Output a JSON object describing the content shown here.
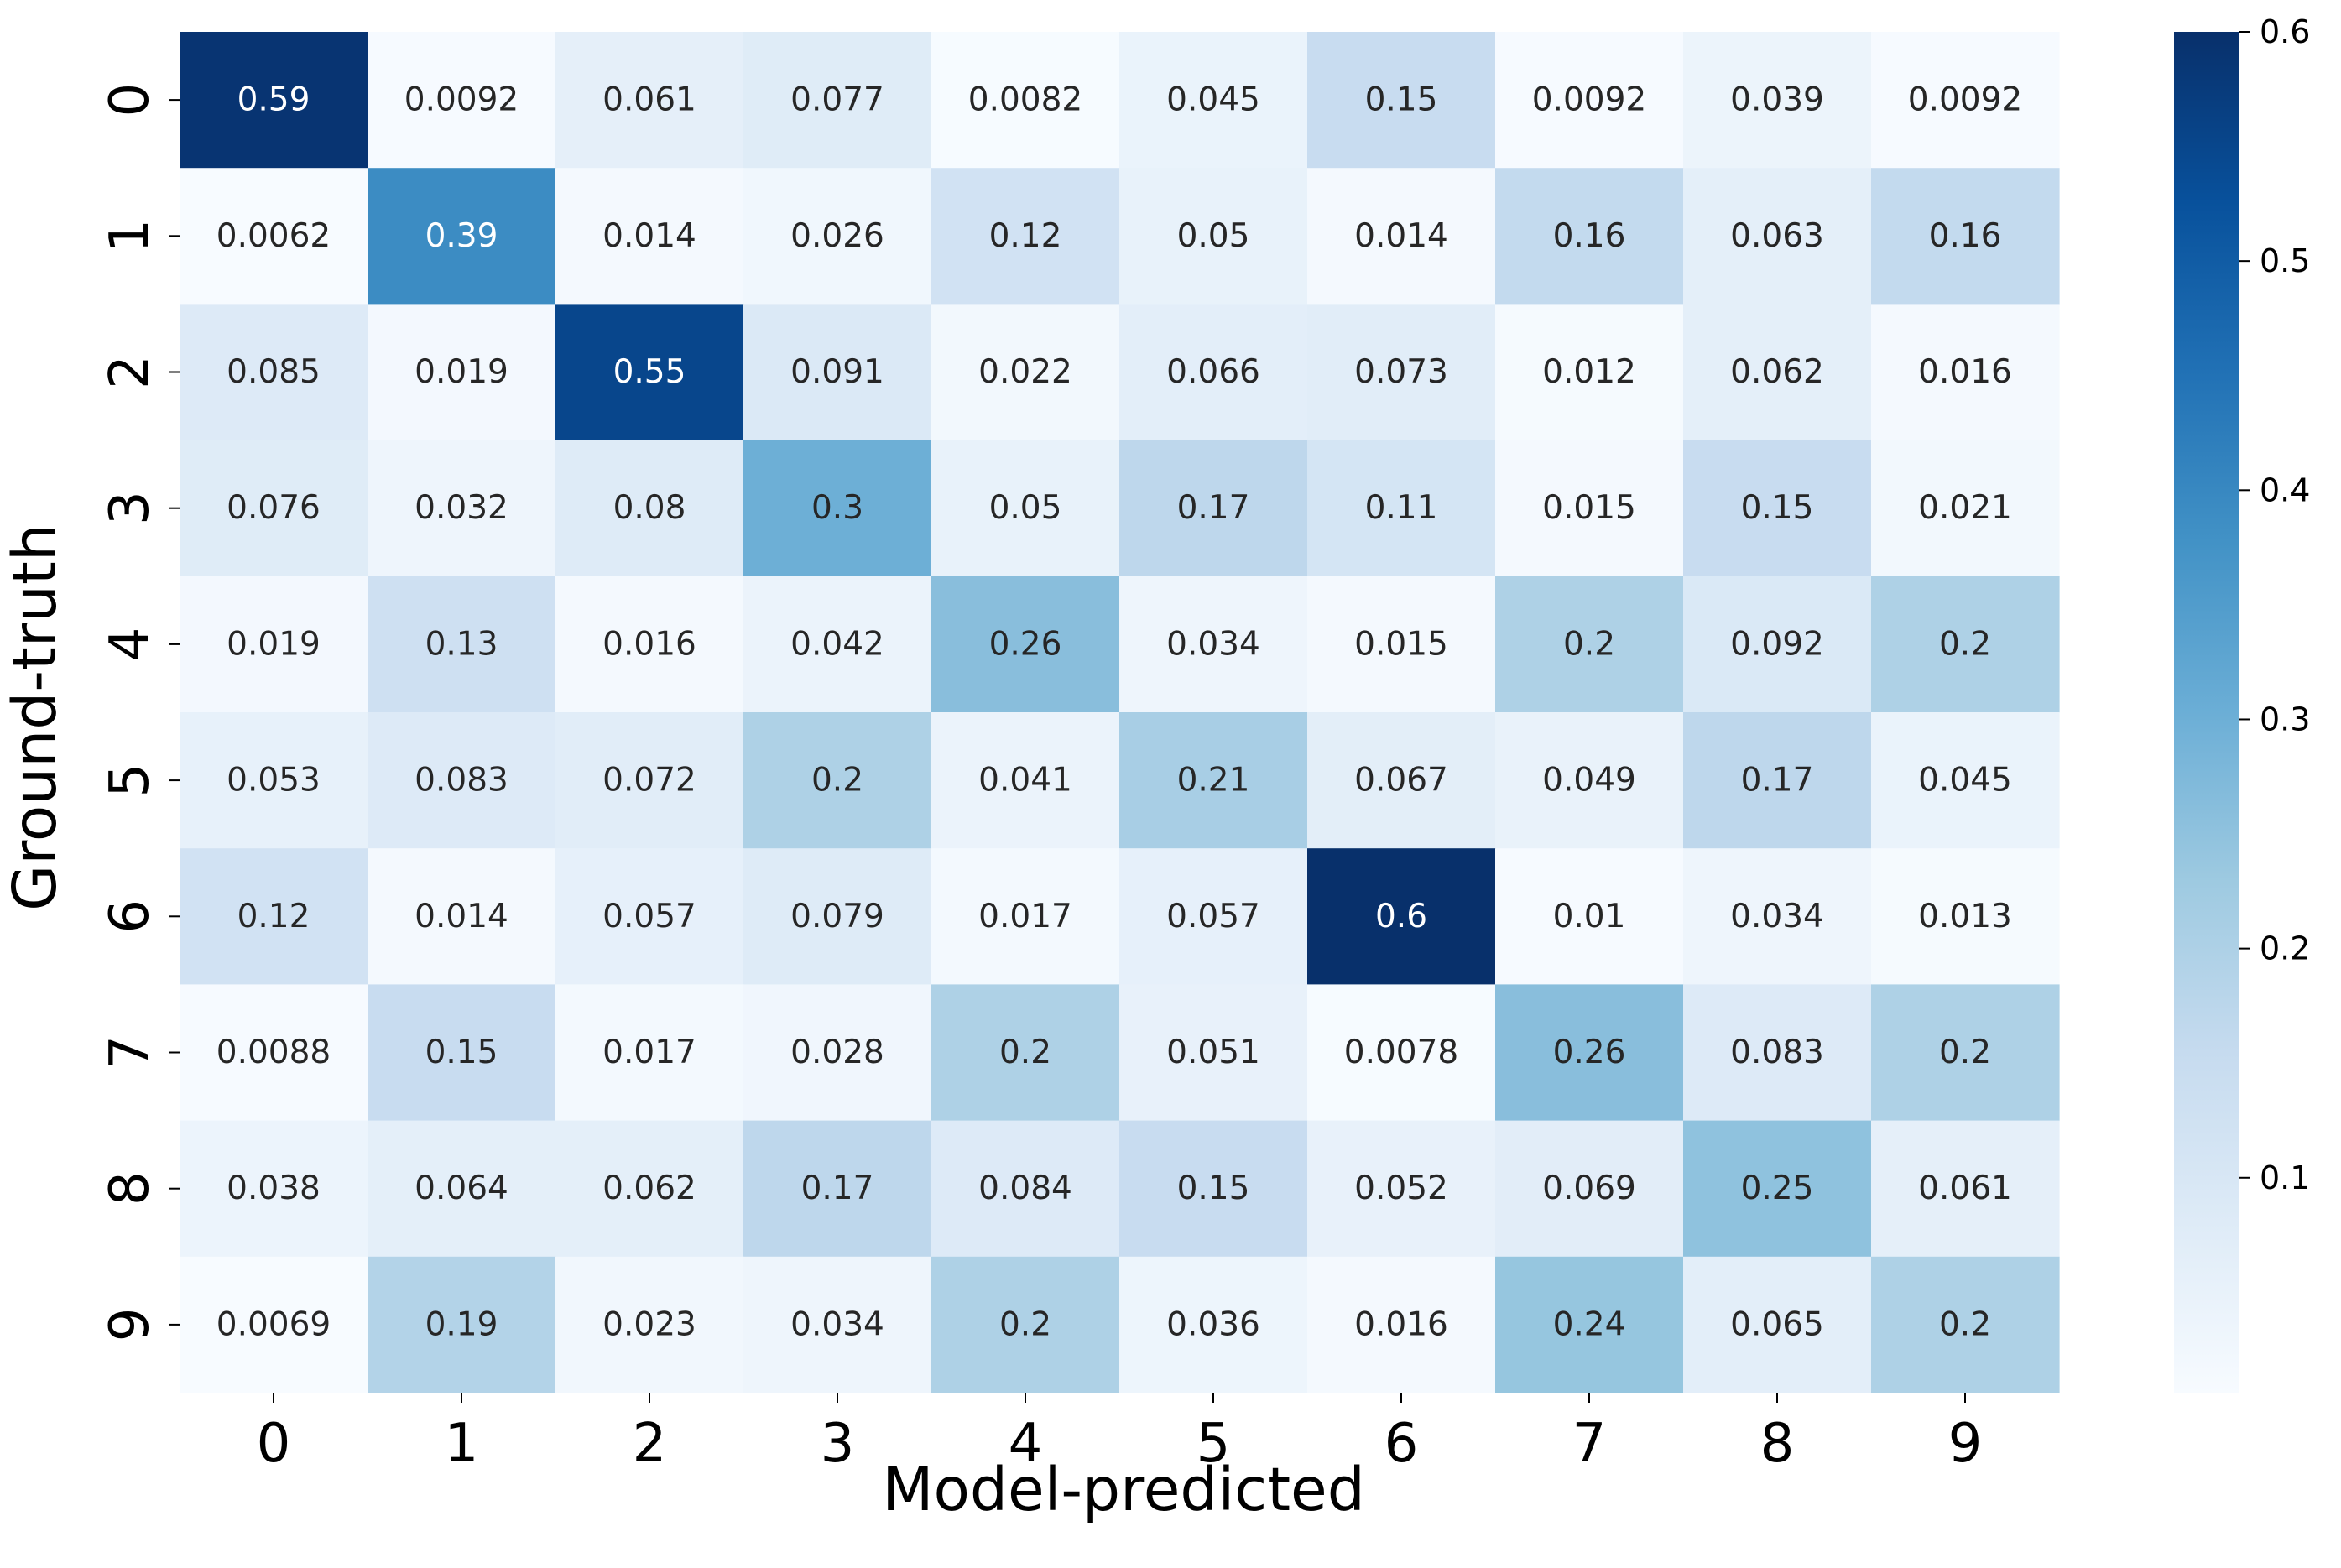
{
  "chart_data": {
    "type": "heatmap",
    "title": "",
    "xlabel": "Model-predicted",
    "ylabel": "Ground-truth",
    "x_categories": [
      "0",
      "1",
      "2",
      "3",
      "4",
      "5",
      "6",
      "7",
      "8",
      "9"
    ],
    "y_categories": [
      "0",
      "1",
      "2",
      "3",
      "4",
      "5",
      "6",
      "7",
      "8",
      "9"
    ],
    "values": [
      [
        0.59,
        0.0092,
        0.061,
        0.077,
        0.0082,
        0.045,
        0.15,
        0.0092,
        0.039,
        0.0092
      ],
      [
        0.0062,
        0.39,
        0.014,
        0.026,
        0.12,
        0.05,
        0.014,
        0.16,
        0.063,
        0.16
      ],
      [
        0.085,
        0.019,
        0.55,
        0.091,
        0.022,
        0.066,
        0.073,
        0.012,
        0.062,
        0.016
      ],
      [
        0.076,
        0.032,
        0.08,
        0.3,
        0.05,
        0.17,
        0.11,
        0.015,
        0.15,
        0.021
      ],
      [
        0.019,
        0.13,
        0.016,
        0.042,
        0.26,
        0.034,
        0.015,
        0.2,
        0.092,
        0.2
      ],
      [
        0.053,
        0.083,
        0.072,
        0.2,
        0.041,
        0.21,
        0.067,
        0.049,
        0.17,
        0.045
      ],
      [
        0.12,
        0.014,
        0.057,
        0.079,
        0.017,
        0.057,
        0.6,
        0.01,
        0.034,
        0.013
      ],
      [
        0.0088,
        0.15,
        0.017,
        0.028,
        0.2,
        0.051,
        0.0078,
        0.26,
        0.083,
        0.2
      ],
      [
        0.038,
        0.064,
        0.062,
        0.17,
        0.084,
        0.15,
        0.052,
        0.069,
        0.25,
        0.061
      ],
      [
        0.0069,
        0.19,
        0.023,
        0.034,
        0.2,
        0.036,
        0.016,
        0.24,
        0.065,
        0.2
      ]
    ],
    "colormap": "Blues",
    "colorbar": {
      "vmin": 0.0062,
      "vmax": 0.6,
      "ticks": [
        0.1,
        0.2,
        0.3,
        0.4,
        0.5,
        0.6
      ],
      "tick_labels": [
        "0.1",
        "0.2",
        "0.3",
        "0.4",
        "0.5",
        "0.6"
      ]
    },
    "annotations": true
  }
}
